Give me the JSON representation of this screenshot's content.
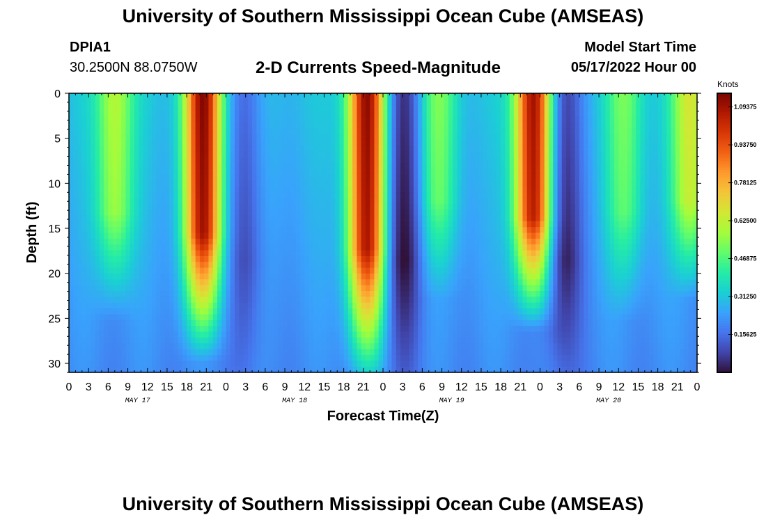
{
  "header": {
    "title": "University of Southern Mississippi Ocean Cube (AMSEAS)",
    "station": "DPIA1",
    "coords": "30.2500N  88.0750W",
    "subtitle": "2-D Currents Speed-Magnitude",
    "model_start_label": "Model Start Time",
    "model_start_value": "05/17/2022 Hour 00"
  },
  "footer": {
    "title": "University of Southern Mississippi Ocean Cube (AMSEAS)"
  },
  "chart_data": {
    "type": "heatmap",
    "title": "2-D Currents Speed-Magnitude",
    "xlabel": "Forecast Time(Z)",
    "ylabel": "Depth (ft)",
    "xlim": [
      0,
      96
    ],
    "ylim": [
      0,
      31
    ],
    "x_tick_labels": [
      "0",
      "3",
      "6",
      "9",
      "12",
      "15",
      "18",
      "21",
      "0",
      "3",
      "6",
      "9",
      "12",
      "15",
      "18",
      "21",
      "0",
      "3",
      "6",
      "9",
      "12",
      "15",
      "18",
      "21",
      "0",
      "3",
      "6",
      "9",
      "12",
      "15",
      "18",
      "21",
      "0"
    ],
    "y_tick_labels": [
      "0",
      "5",
      "10",
      "15",
      "20",
      "25",
      "30"
    ],
    "day_labels": [
      "MAY 17",
      "MAY 18",
      "MAY 19",
      "MAY 20"
    ],
    "colorbar": {
      "unit": "Knots",
      "min": 0,
      "max": 1.15,
      "tick_values": [
        1.09375,
        0.9375,
        0.78125,
        0.625,
        0.46875,
        0.3125,
        0.15625
      ],
      "tick_labels": [
        "1.09375",
        "0.93750",
        "0.78125",
        "0.62500",
        "0.46875",
        "0.31250",
        "0.15625"
      ],
      "colors": [
        "#30123b",
        "#4145ab",
        "#4675ed",
        "#39a2fc",
        "#1bcfd4",
        "#24eca6",
        "#61fc6c",
        "#a4fc3b",
        "#d1e834",
        "#f3c63a",
        "#fe9b2d",
        "#f36315",
        "#d93806",
        "#b11901",
        "#7a0402"
      ]
    },
    "features": [
      {
        "hour": 20.5,
        "value": 1.12,
        "depth_reach": 26,
        "description": "strong current max"
      },
      {
        "hour": 45.5,
        "value": 1.12,
        "depth_reach": 29,
        "description": "strong current max"
      },
      {
        "hour": 71,
        "value": 1.12,
        "depth_reach": 23,
        "description": "strong current max"
      },
      {
        "hour": 7,
        "value": 0.62,
        "depth_reach": 22,
        "description": "moderate current"
      },
      {
        "hour": 56.5,
        "value": 0.52,
        "depth_reach": 20,
        "description": "moderate current"
      },
      {
        "hour": 85,
        "value": 0.52,
        "depth_reach": 22,
        "description": "moderate current"
      },
      {
        "hour": 95,
        "value": 0.68,
        "depth_reach": 20,
        "description": "moderate current"
      },
      {
        "hour": 51,
        "value": 0.05,
        "depth_reach": 31,
        "description": "slack water minimum"
      },
      {
        "hour": 75.5,
        "value": 0.05,
        "depth_reach": 31,
        "description": "slack water minimum"
      },
      {
        "hour": 27,
        "value": 0.15,
        "depth_reach": 31,
        "description": "weak current"
      }
    ]
  }
}
